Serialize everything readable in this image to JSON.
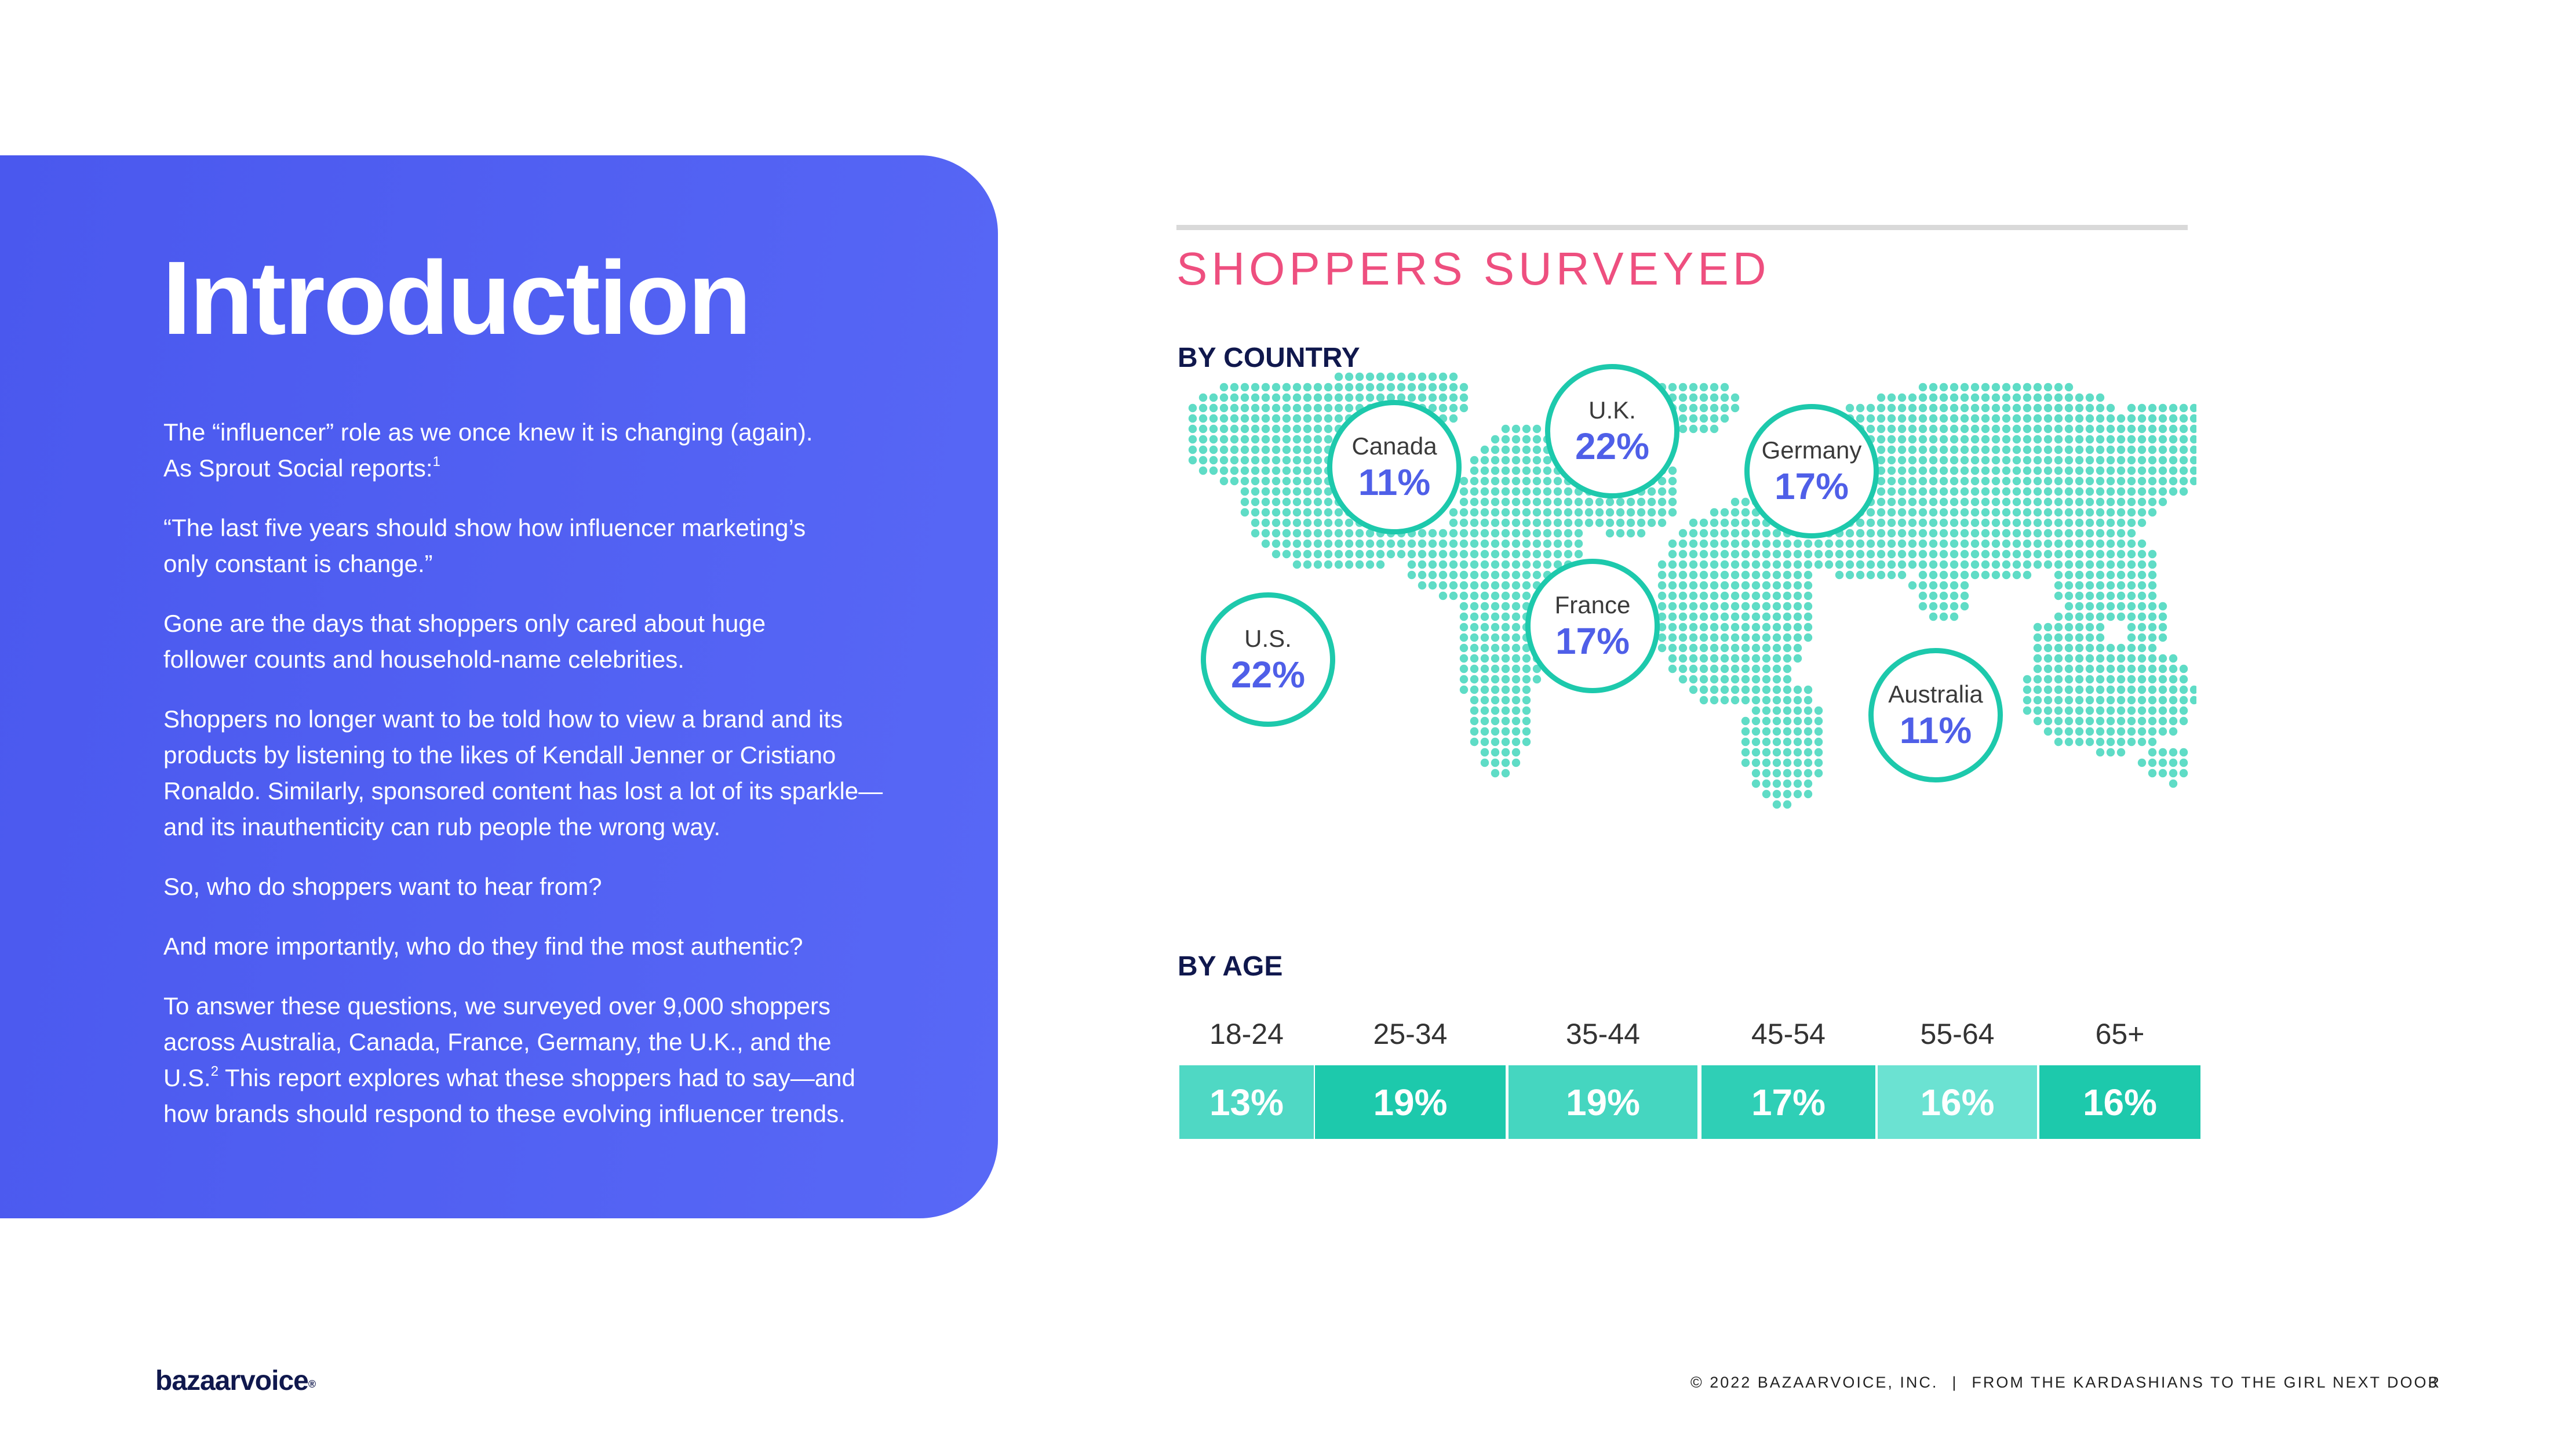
{
  "intro": {
    "title": "Introduction",
    "paragraphs": [
      {
        "lines": [
          "The “influencer” role as we once knew it is changing (again).",
          "As Sprout Social reports:"
        ],
        "sup": "1"
      },
      {
        "lines": [
          "“The last five years should show how influencer marketing’s",
          "only constant is change.”"
        ]
      },
      {
        "lines": [
          "Gone are the days that shoppers only cared about huge",
          "follower counts and household-name celebrities."
        ]
      },
      {
        "lines": [
          "Shoppers no longer want to be told how to view a brand and its",
          "products by listening to the likes of Kendall Jenner or Cristiano",
          "Ronaldo. Similarly, sponsored content has lost a lot of its sparkle—",
          "and its inauthenticity can rub people the wrong way."
        ]
      },
      {
        "lines": [
          "So, who do shoppers want to hear from?"
        ]
      },
      {
        "lines": [
          "And more importantly, who do they find the most authentic?"
        ]
      },
      {
        "lines": [
          "To answer these questions, we surveyed over 9,000 shoppers",
          "across Australia, Canada, France, Germany, the U.K., and the",
          "U.S."
        ]
      }
    ],
    "last_sup": "2",
    "last_tail": [
      " This report explores what these shoppers had to say—and",
      "how brands should respond to these evolving influencer trends."
    ]
  },
  "survey": {
    "title": "SHOPPERS SURVEYED",
    "by_country_label": "BY COUNTRY",
    "by_age_label": "BY AGE",
    "countries": [
      {
        "name": "Canada",
        "pct": "11%"
      },
      {
        "name": "U.K.",
        "pct": "22%"
      },
      {
        "name": "Germany",
        "pct": "17%"
      },
      {
        "name": "France",
        "pct": "17%"
      },
      {
        "name": "U.S.",
        "pct": "22%"
      },
      {
        "name": "Australia",
        "pct": "11%"
      }
    ],
    "ages": [
      {
        "range": "18-24",
        "pct": "13%",
        "color": "#4fd8c4"
      },
      {
        "range": "25-34",
        "pct": "19%",
        "color": "#1dc9ac"
      },
      {
        "range": "35-44",
        "pct": "19%",
        "color": "#45d6c0"
      },
      {
        "range": "45-54",
        "pct": "17%",
        "color": "#2fcfb6"
      },
      {
        "range": "55-64",
        "pct": "16%",
        "color": "#6be2d2"
      },
      {
        "range": "65+",
        "pct": "16%",
        "color": "#1dc9ac"
      }
    ]
  },
  "colors": {
    "panel": "#5062f2",
    "accent_pink": "#ee4f7f",
    "teal": "#1dc9ac",
    "pct_blue": "#4f5fe8",
    "navy": "#10184d"
  },
  "footer": {
    "logo": "bazaarvoice",
    "logo_mark": "®",
    "copyright": "© 2022 BAZAARVOICE, INC.",
    "separator": "|",
    "report_title": "FROM THE KARDASHIANS TO THE GIRL NEXT DOOR",
    "page": "3"
  }
}
